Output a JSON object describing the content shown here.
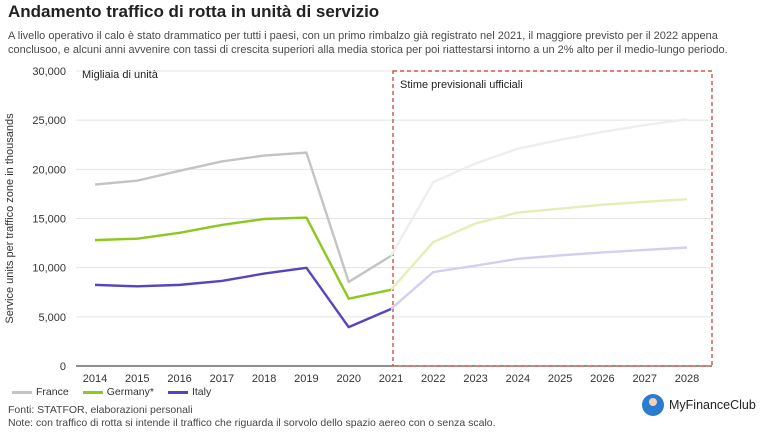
{
  "header": {
    "title": "Andamento traffico di rotta in unità di servizio",
    "subtitle": "A livello operativo il calo è stato drammatico per tutti i paesi, con un primo rimbalzo già registrato nel 2021, il maggiore previsto per il 2022 appena conclusoo, e alcuni anni avvenire con tassi di crescita superiori alla media storica per poi riattestarsi intorno a un 2% alto per il medio-lungo periodo."
  },
  "chart_data": {
    "type": "line",
    "x": [
      2014,
      2015,
      2016,
      2017,
      2018,
      2019,
      2020,
      2021,
      2022,
      2023,
      2024,
      2025,
      2026,
      2027,
      2028
    ],
    "ylabel": "Service units per traffico zone in thousands",
    "unit_note": "Migliaia di unità",
    "ylim": [
      0,
      30000
    ],
    "yticks": [
      0,
      5000,
      10000,
      15000,
      20000,
      25000,
      30000
    ],
    "ytick_labels": [
      "0",
      "5,000",
      "10,000",
      "15,000",
      "20,000",
      "25,000",
      "30,000"
    ],
    "forecast_label": "Stime previsionali ufficiali",
    "forecast_from": 2021,
    "grid": true,
    "legend_position": "bottom-left",
    "series": [
      {
        "name": "France",
        "color": "#c4c4c4",
        "forecast_color": "#eeeeee",
        "values": [
          18450,
          18850,
          19850,
          20800,
          21400,
          21700,
          8550,
          11200,
          18700,
          20600,
          22100,
          23000,
          23800,
          24500,
          25100
        ]
      },
      {
        "name": "Germany*",
        "color": "#8cc81e",
        "forecast_color": "#e3efb6",
        "values": [
          12800,
          12950,
          13550,
          14350,
          14950,
          15100,
          6850,
          7750,
          12600,
          14500,
          15600,
          16000,
          16400,
          16700,
          16950
        ]
      },
      {
        "name": "Italy",
        "color": "#5545c0",
        "forecast_color": "#d4cff0",
        "values": [
          8250,
          8100,
          8250,
          8650,
          9400,
          9980,
          3950,
          5800,
          9550,
          10200,
          10900,
          11250,
          11550,
          11800,
          12050
        ]
      }
    ]
  },
  "footer": {
    "sources": "Fonti: STATFOR, elaborazioni personali",
    "note": "Note: con traffico di rotta si intende il traffico che riguarda il sorvolo dello spazio aereo con o senza scalo."
  },
  "brand": {
    "name": "MyFinanceClub"
  }
}
